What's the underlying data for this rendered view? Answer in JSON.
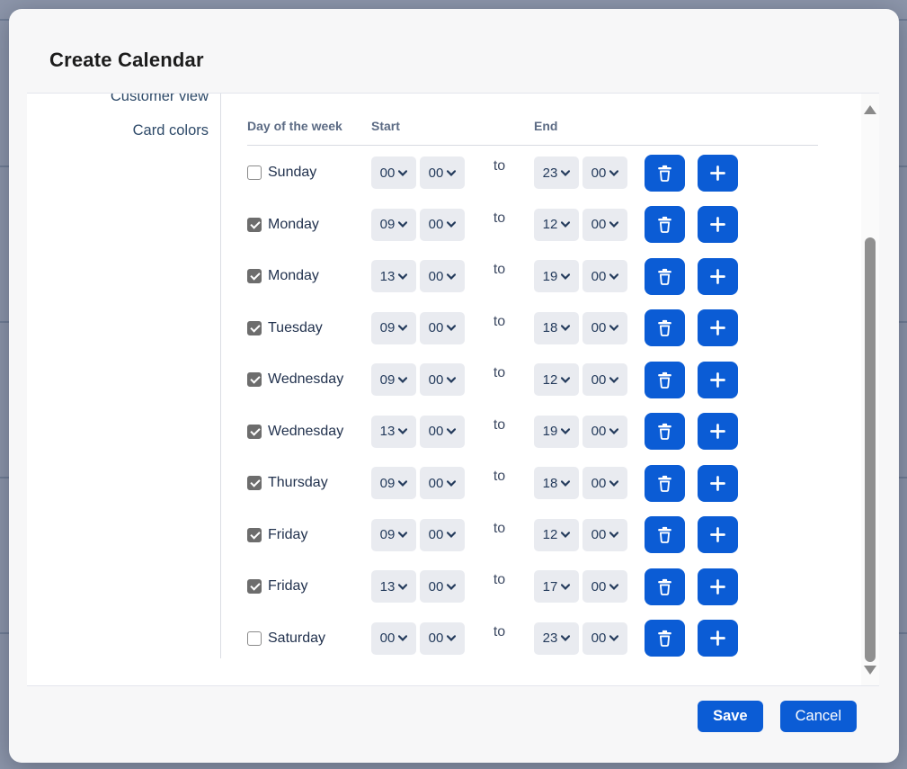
{
  "colors": {
    "primary_blue": "#0b5cd5",
    "backdrop": "#8d96aa",
    "select_background": "#e9ebf0",
    "text_navy": "#22324e",
    "header_text": "#5c6b84"
  },
  "modal": {
    "title": "Create Calendar",
    "sidebar": {
      "items": [
        {
          "label": "Customer view"
        },
        {
          "label": "Card colors"
        }
      ]
    },
    "schedule": {
      "columns": {
        "day": "Day of the week",
        "start": "Start",
        "end": "End"
      },
      "separator": "to",
      "rows": [
        {
          "day": "Sunday",
          "checked": false,
          "start_hour": "00",
          "start_minute": "00",
          "end_hour": "23",
          "end_minute": "00"
        },
        {
          "day": "Monday",
          "checked": true,
          "start_hour": "09",
          "start_minute": "00",
          "end_hour": "12",
          "end_minute": "00"
        },
        {
          "day": "Monday",
          "checked": true,
          "start_hour": "13",
          "start_minute": "00",
          "end_hour": "19",
          "end_minute": "00"
        },
        {
          "day": "Tuesday",
          "checked": true,
          "start_hour": "09",
          "start_minute": "00",
          "end_hour": "18",
          "end_minute": "00"
        },
        {
          "day": "Wednesday",
          "checked": true,
          "start_hour": "09",
          "start_minute": "00",
          "end_hour": "12",
          "end_minute": "00"
        },
        {
          "day": "Wednesday",
          "checked": true,
          "start_hour": "13",
          "start_minute": "00",
          "end_hour": "19",
          "end_minute": "00"
        },
        {
          "day": "Thursday",
          "checked": true,
          "start_hour": "09",
          "start_minute": "00",
          "end_hour": "18",
          "end_minute": "00"
        },
        {
          "day": "Friday",
          "checked": true,
          "start_hour": "09",
          "start_minute": "00",
          "end_hour": "12",
          "end_minute": "00"
        },
        {
          "day": "Friday",
          "checked": true,
          "start_hour": "13",
          "start_minute": "00",
          "end_hour": "17",
          "end_minute": "00"
        },
        {
          "day": "Saturday",
          "checked": false,
          "start_hour": "00",
          "start_minute": "00",
          "end_hour": "23",
          "end_minute": "00"
        }
      ]
    },
    "footer": {
      "save_label": "Save",
      "cancel_label": "Cancel"
    }
  }
}
